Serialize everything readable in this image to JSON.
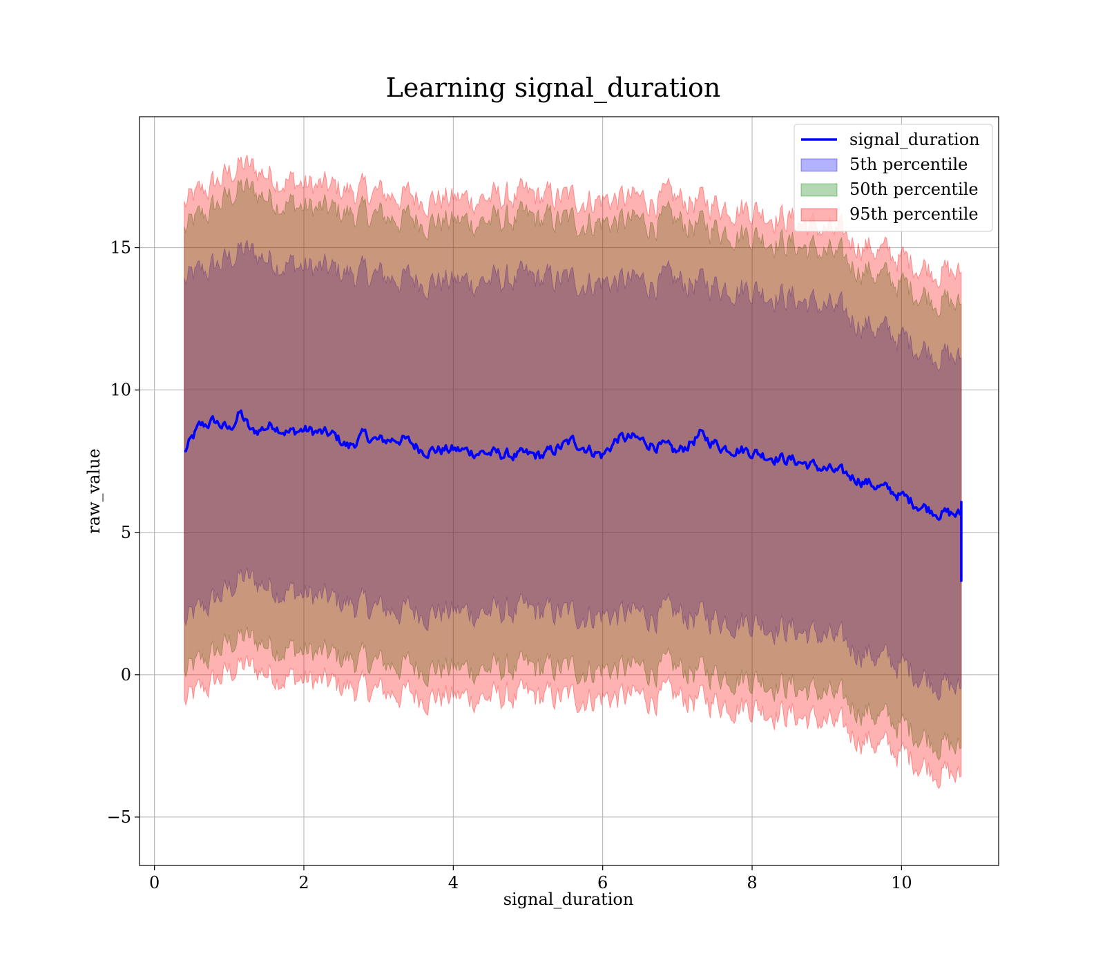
{
  "chart_data": {
    "type": "line",
    "title": "Learning signal_duration",
    "xlabel": "signal_duration",
    "ylabel": "raw_value",
    "xlim": [
      -0.2,
      11.3
    ],
    "ylim": [
      -6.7,
      19.6
    ],
    "xticks": [
      0,
      2,
      4,
      6,
      8,
      10
    ],
    "yticks": [
      -5,
      0,
      5,
      10,
      15
    ],
    "ytick_labels": [
      "−5",
      "0",
      "5",
      "10",
      "15"
    ],
    "grid": true,
    "legend_position": "top-right",
    "line": {
      "name": "signal_duration",
      "color": "#0000ff",
      "x": [
        0.4,
        0.6,
        0.8,
        1.0,
        1.15,
        1.3,
        1.6,
        1.8,
        2.0,
        2.4,
        2.6,
        2.8,
        3.0,
        3.3,
        3.6,
        4.0,
        4.4,
        4.8,
        5.2,
        5.6,
        6.0,
        6.2,
        6.4,
        6.8,
        7.0,
        7.3,
        7.6,
        7.9,
        8.2,
        8.6,
        9.0,
        9.3,
        9.6,
        9.9,
        10.2,
        10.5,
        10.8
      ],
      "y": [
        7.8,
        8.7,
        8.9,
        8.6,
        9.2,
        8.5,
        8.8,
        8.5,
        8.6,
        8.4,
        8.0,
        8.4,
        8.2,
        8.3,
        7.9,
        7.9,
        7.8,
        7.7,
        7.7,
        8.2,
        7.7,
        8.3,
        8.3,
        8.0,
        7.8,
        8.4,
        8.0,
        7.9,
        7.7,
        7.5,
        7.2,
        7.0,
        6.7,
        6.4,
        6.0,
        5.7,
        5.6
      ]
    },
    "bands": [
      {
        "name": "5th percentile",
        "color": "#0000ff",
        "x": [
          0.4,
          1.0,
          1.15,
          2.0,
          3.0,
          4.0,
          5.0,
          6.0,
          7.0,
          8.0,
          9.0,
          10.0,
          10.8
        ],
        "upper": [
          13.8,
          14.6,
          14.9,
          14.3,
          14.0,
          13.8,
          13.9,
          13.8,
          13.8,
          13.6,
          12.9,
          11.8,
          11.0
        ],
        "lower": [
          1.8,
          3.0,
          3.4,
          2.8,
          2.3,
          2.2,
          2.2,
          2.1,
          2.1,
          1.9,
          1.3,
          0.3,
          -0.6
        ]
      },
      {
        "name": "50th percentile",
        "color": "#008000",
        "x": [
          0.4,
          1.0,
          1.15,
          2.0,
          3.0,
          4.0,
          5.0,
          6.0,
          7.0,
          8.0,
          9.0,
          10.0,
          10.8
        ],
        "upper": [
          15.6,
          16.8,
          17.1,
          16.4,
          16.1,
          15.9,
          16.0,
          15.9,
          15.9,
          15.5,
          14.8,
          13.7,
          12.9
        ],
        "lower": [
          0.0,
          1.1,
          1.3,
          0.8,
          0.4,
          0.2,
          0.2,
          0.2,
          0.2,
          -0.1,
          -0.7,
          -1.8,
          -2.7
        ]
      },
      {
        "name": "95th percentile",
        "color": "#ff0000",
        "x": [
          0.4,
          1.0,
          1.15,
          2.0,
          3.0,
          4.0,
          5.0,
          6.0,
          7.0,
          8.0,
          9.0,
          10.0,
          10.8
        ],
        "upper": [
          16.5,
          17.6,
          17.9,
          17.2,
          16.9,
          16.7,
          16.8,
          16.7,
          16.7,
          16.4,
          15.6,
          14.6,
          14.0
        ],
        "lower": [
          -1.0,
          0.1,
          0.3,
          -0.2,
          -0.6,
          -0.8,
          -0.8,
          -0.8,
          -0.8,
          -1.1,
          -1.7,
          -2.8,
          -3.7
        ]
      }
    ]
  }
}
